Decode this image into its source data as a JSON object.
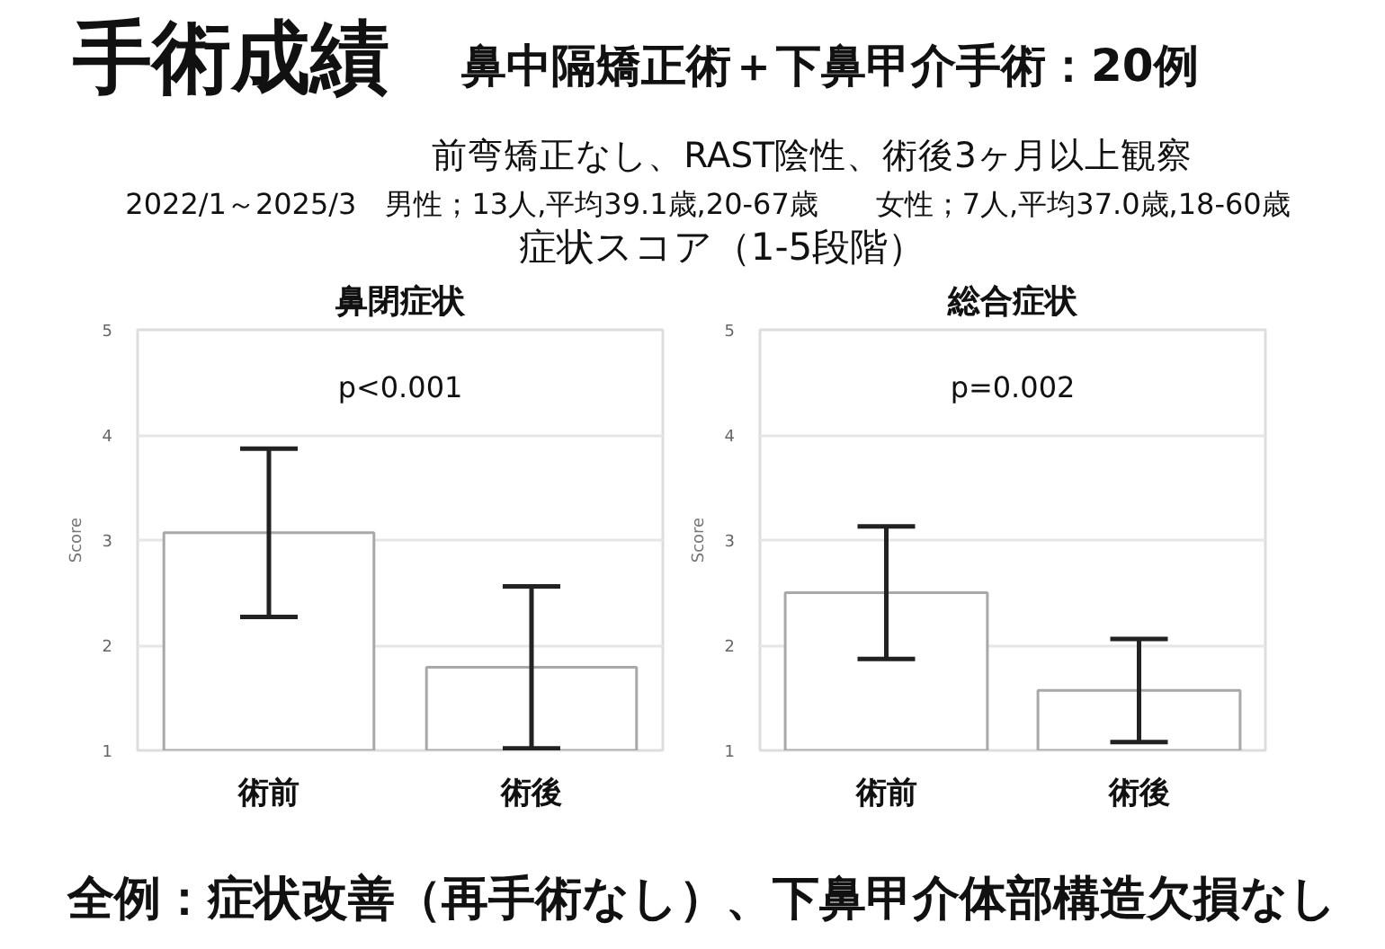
{
  "chart_data": [
    {
      "type": "other",
      "title": "手術成績",
      "subtitle": "鼻中隔矯正術＋下鼻甲介手術：20例",
      "annotations": [
        "前弯矯正なし、RAST陰性、術後3ヶ月以上観察",
        "2022/1～2025/3　男性；13人,平均39.1歳,20-67歳　　女性；7人,平均37.0歳,18-60歳",
        "症状スコア（1-5段階）",
        "全例：症状改善（再手術なし）、下鼻甲介体部構造欠損なし"
      ]
    },
    {
      "type": "bar",
      "title": "鼻閉症状",
      "ylabel": "Score",
      "categories": [
        "術前",
        "術後"
      ],
      "values": [
        3.07,
        1.79
      ],
      "errors": [
        0.8,
        0.77
      ],
      "color": "#ffffff",
      "ylim": [
        1,
        5
      ],
      "yticks": [
        1,
        2,
        3,
        4,
        5
      ],
      "grid": "y",
      "annotations": [
        "p<0.001"
      ]
    },
    {
      "type": "bar",
      "title": "総合症状",
      "ylabel": "Score",
      "categories": [
        "術前",
        "術後"
      ],
      "values": [
        2.5,
        1.57
      ],
      "errors": [
        0.63,
        0.49
      ],
      "color": "#ffffff",
      "ylim": [
        1,
        5
      ],
      "yticks": [
        1,
        2,
        3,
        4,
        5
      ],
      "grid": "y",
      "annotations": [
        "p=0.002"
      ]
    }
  ]
}
